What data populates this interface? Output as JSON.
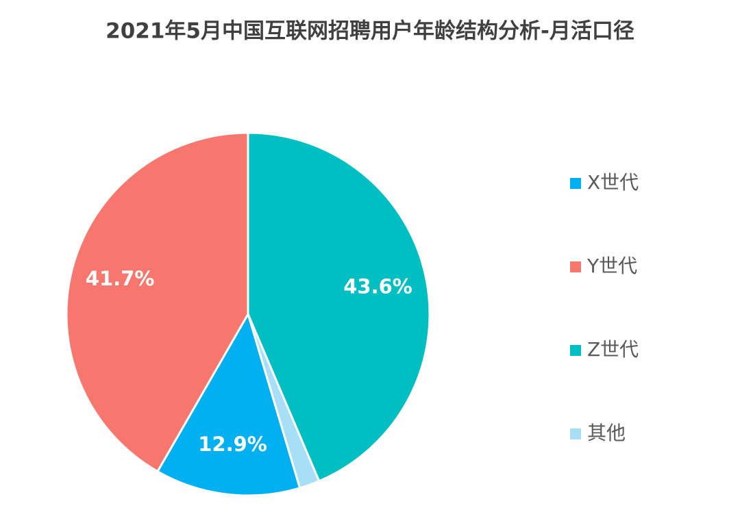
{
  "chart_data": {
    "type": "pie",
    "title": "2021年5月中国互联网招聘用户年龄结构分析-月活口径",
    "categories": [
      "X世代",
      "Y世代",
      "Z世代",
      "其他"
    ],
    "values": [
      12.9,
      41.7,
      43.6,
      1.8
    ],
    "value_labels": [
      "12.9%",
      "41.7%",
      "43.6%",
      null
    ],
    "colors": [
      "#00b0f0",
      "#f7776e",
      "#00bfc3",
      "#a6dff6"
    ],
    "legend": "right"
  }
}
